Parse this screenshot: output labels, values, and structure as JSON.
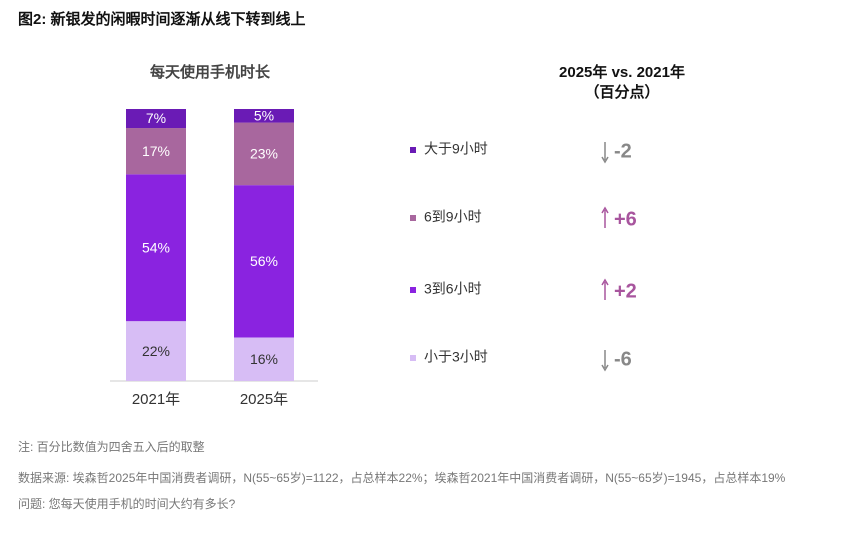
{
  "chart_data": {
    "type": "stacked_bar",
    "title": "图2: 新银发的闲暇时间逐渐从线下转到线上",
    "subtitle": "每天使用手机时长",
    "categories": [
      "2021年",
      "2025年"
    ],
    "series": [
      {
        "name": "大于9小时",
        "color": "#6a1bb5",
        "values": [
          7,
          5
        ],
        "value_labels": [
          "7%",
          "5%"
        ],
        "change": -2
      },
      {
        "name": "6到9小时",
        "color": "#a8679e",
        "values": [
          17,
          23
        ],
        "value_labels": [
          "17%",
          "23%"
        ],
        "change": 6,
        "change_label": "+6"
      },
      {
        "name": "3到6小时",
        "color": "#8a23e0",
        "values": [
          54,
          56
        ],
        "value_labels": [
          "54%",
          "56%"
        ],
        "change": 2,
        "change_label": "+2"
      },
      {
        "name": "小于3小时",
        "color": "#d7bdf5",
        "values": [
          22,
          16
        ],
        "value_labels": [
          "22%",
          "16%"
        ],
        "change": -6
      }
    ],
    "change_title": "2025年 vs. 2021年",
    "change_unit": "（百分点）",
    "notes": [
      "注: 百分比数值为四舍五入后的取整",
      "数据来源: 埃森哲2025年中国消费者调研，N(55~65岁)=1122，占总样本22%；埃森哲2021年中国消费者调研，N(55~65岁)=1945，占总样本19%",
      "问题: 您每天使用手机的时间大约有多长?"
    ]
  }
}
